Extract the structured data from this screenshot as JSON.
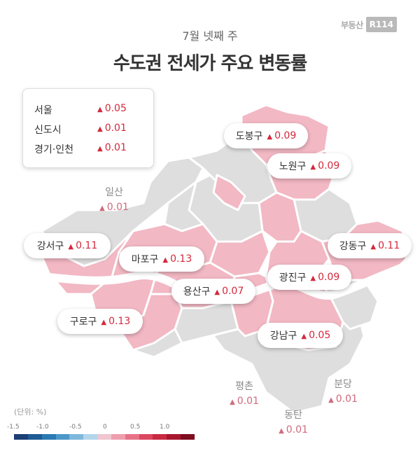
{
  "brand": {
    "text": "부동산",
    "box": "R114"
  },
  "header": {
    "subtitle": "7월 넷째 주",
    "title": "수도권 전세가 주요 변동률"
  },
  "legend": [
    {
      "region": "서울",
      "change": "0.05"
    },
    {
      "region": "신도시",
      "change": "0.01"
    },
    {
      "region": "경기·인천",
      "change": "0.01"
    }
  ],
  "districts": [
    {
      "name": "도봉구",
      "change": "0.09"
    },
    {
      "name": "노원구",
      "change": "0.09"
    },
    {
      "name": "강서구",
      "change": "0.11"
    },
    {
      "name": "마포구",
      "change": "0.13"
    },
    {
      "name": "강동구",
      "change": "0.11"
    },
    {
      "name": "광진구",
      "change": "0.09"
    },
    {
      "name": "용산구",
      "change": "0.07"
    },
    {
      "name": "구로구",
      "change": "0.13"
    },
    {
      "name": "강남구",
      "change": "0.05"
    }
  ],
  "satellites": [
    {
      "name": "일산",
      "change": "0.01"
    },
    {
      "name": "평촌",
      "change": "0.01"
    },
    {
      "name": "분당",
      "change": "0.01"
    },
    {
      "name": "동탄",
      "change": "0.01"
    }
  ],
  "scale": {
    "unit_label": "(단위: %)",
    "ticks": [
      "-1.5",
      "-1.0",
      "-0.5",
      "0",
      "0.5",
      "1.0"
    ],
    "colors": [
      "#1c3f75",
      "#1f5b95",
      "#2a7ab3",
      "#4d98c9",
      "#7fb8dc",
      "#b4d6ec",
      "#f0c6cf",
      "#ee9fad",
      "#e77287",
      "#db4761",
      "#c92a43",
      "#a7172e",
      "#7e0d21"
    ]
  },
  "map_colors": {
    "pink": "#f2b8c4",
    "gray": "#dedede",
    "river": "#ffffff",
    "increase": "#d4283c"
  },
  "icons": {
    "increase": "triangle-up-icon"
  }
}
